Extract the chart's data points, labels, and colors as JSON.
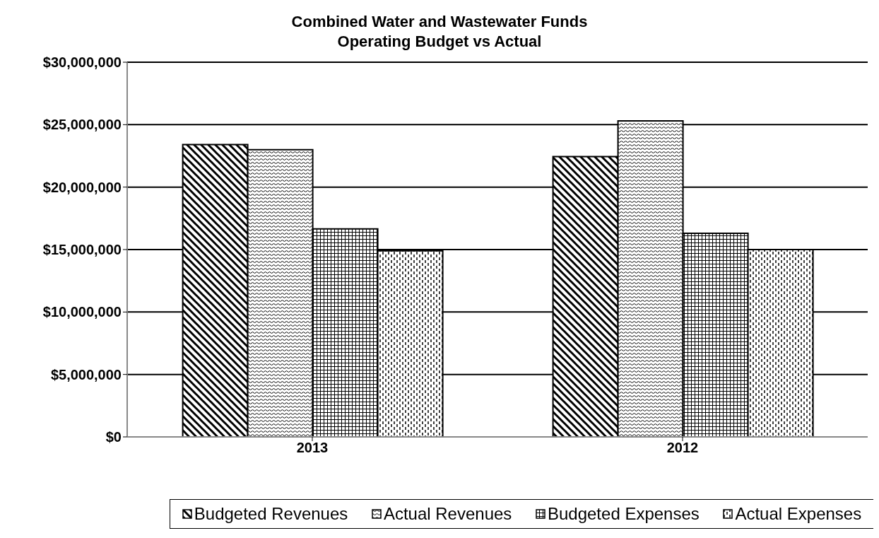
{
  "chart_data": {
    "type": "bar",
    "title": "Combined Water and Wastewater Funds\nOperating Budget vs Actual",
    "categories": [
      "2013",
      "2012"
    ],
    "series": [
      {
        "name": "Budgeted Revenues",
        "color": "#000000",
        "values": [
          23400000,
          22450000
        ]
      },
      {
        "name": "Actual Revenues",
        "color": "#000000",
        "values": [
          23000000,
          25300000
        ]
      },
      {
        "name": "Budgeted Expenses",
        "color": "#000000",
        "values": [
          16650000,
          16300000
        ]
      },
      {
        "name": "Actual Expenses",
        "color": "#000000",
        "values": [
          14900000,
          15000000
        ]
      }
    ],
    "ylim": [
      0,
      30000000
    ],
    "yticks": [
      {
        "value": 0,
        "label": "$0"
      },
      {
        "value": 5000000,
        "label": "$5,000,000"
      },
      {
        "value": 10000000,
        "label": "$10,000,000"
      },
      {
        "value": 15000000,
        "label": "$15,000,000"
      },
      {
        "value": 20000000,
        "label": "$20,000,000"
      },
      {
        "value": 25000000,
        "label": "$25,000,000"
      },
      {
        "value": 30000000,
        "label": "$30,000,000"
      }
    ],
    "grid": "y",
    "legend": "bottom"
  }
}
